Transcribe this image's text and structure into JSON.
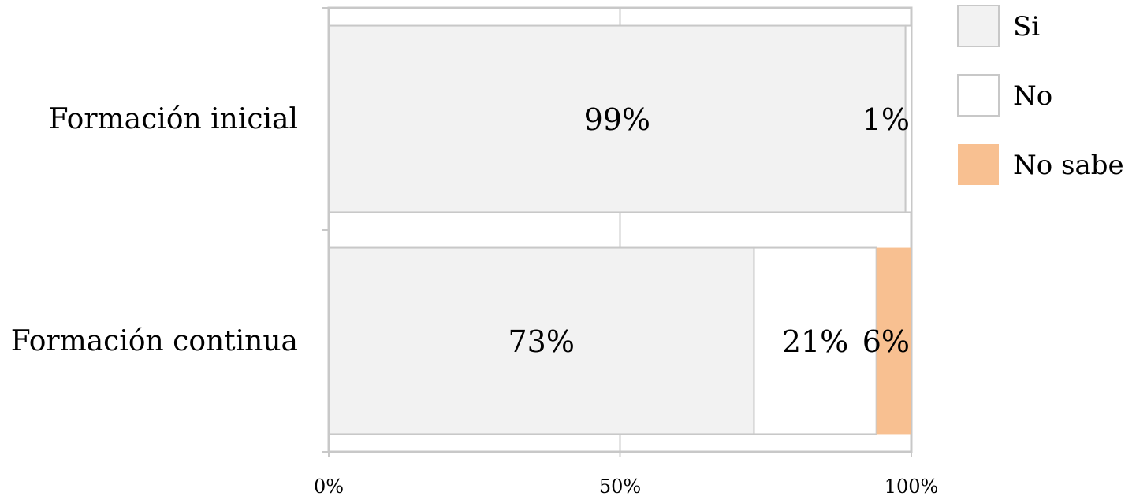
{
  "chart_data": {
    "type": "bar",
    "orientation": "horizontal",
    "stacked": "percent",
    "categories": [
      "Formación inicial",
      "Formación continua"
    ],
    "series": [
      {
        "name": "Si",
        "values": [
          99,
          73
        ],
        "labels": [
          "99%",
          "73%"
        ],
        "color": "#f2f2f2"
      },
      {
        "name": "No",
        "values": [
          1,
          21
        ],
        "labels": [
          "1%",
          "21%"
        ],
        "color": "#ffffff"
      },
      {
        "name": "No sabe",
        "values": [
          0,
          6
        ],
        "labels": [
          "",
          "6%"
        ],
        "color": "#f8c091"
      }
    ],
    "xticks": [
      "0%",
      "50%",
      "100%"
    ],
    "xlim": [
      0,
      100
    ],
    "grid": true,
    "legend": "right",
    "title": "",
    "xlabel": "",
    "ylabel": ""
  }
}
